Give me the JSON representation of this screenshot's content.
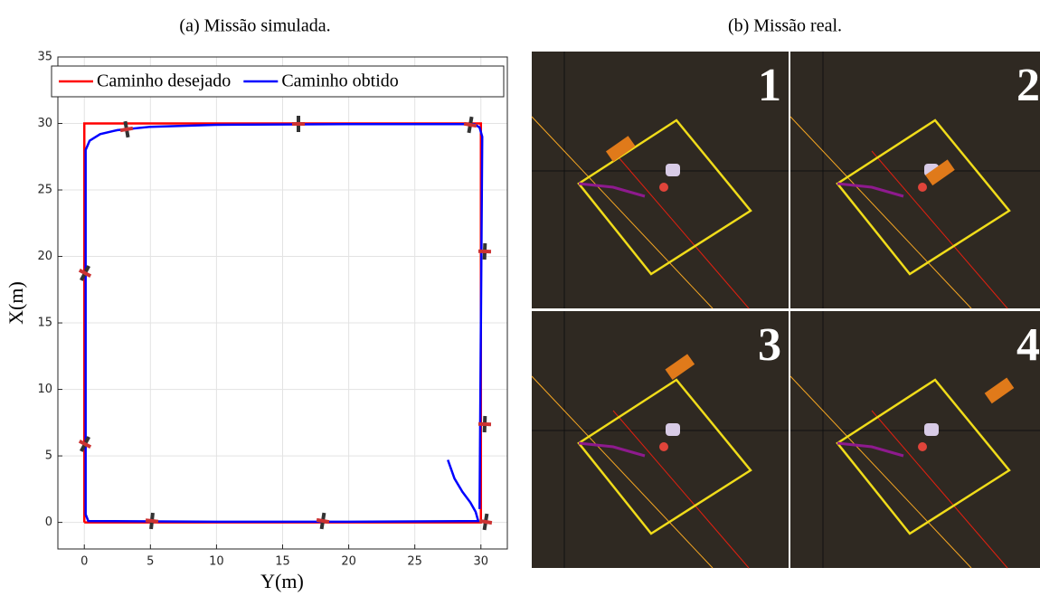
{
  "chart_data": {
    "type": "line",
    "title": "(a) Missão simulada.",
    "xlabel": "Y(m)",
    "ylabel": "X(m)",
    "xlim": [
      -2,
      32
    ],
    "ylim": [
      -2,
      35
    ],
    "xticks": [
      0,
      5,
      10,
      15,
      20,
      25,
      30
    ],
    "yticks": [
      0,
      5,
      10,
      15,
      20,
      25,
      30,
      35
    ],
    "grid": true,
    "legend": "top",
    "series": [
      {
        "name": "Caminho desejado",
        "color": "#ff0000",
        "x": [
          0,
          30,
          30,
          0,
          0
        ],
        "values": [
          0,
          0,
          30,
          30,
          0
        ]
      },
      {
        "name": "Caminho obtido",
        "color": "#0000ff",
        "x": [
          27.5,
          28.0,
          28.6,
          29.2,
          29.6,
          29.8,
          20,
          10,
          0.3,
          0.1,
          0.1,
          0.4,
          1.2,
          2.5,
          5,
          10,
          20,
          29.5,
          29.9,
          30.1,
          30.0,
          29.9
        ],
        "values": [
          4.7,
          3.3,
          2.3,
          1.5,
          0.8,
          0.1,
          0.05,
          0.05,
          0.1,
          0.6,
          28,
          28.7,
          29.2,
          29.5,
          29.75,
          29.9,
          29.95,
          29.95,
          29.7,
          29.0,
          15,
          1.0
        ]
      }
    ]
  },
  "panel_b": {
    "title": "(b) Missão real.",
    "frames": [
      "1",
      "2",
      "3",
      "4"
    ]
  }
}
